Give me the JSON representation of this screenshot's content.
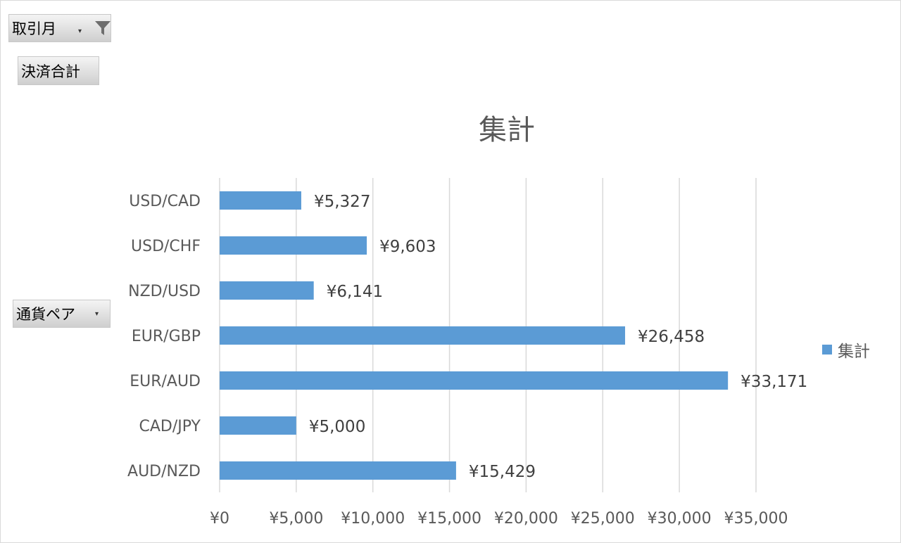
{
  "filters": {
    "month_label": "取引月",
    "settlement_label": "決済合計",
    "pair_label": "通貨ペア"
  },
  "chart_data": {
    "type": "bar",
    "orientation": "horizontal",
    "title": "集計",
    "categories": [
      "USD/CAD",
      "USD/CHF",
      "NZD/USD",
      "EUR/GBP",
      "EUR/AUD",
      "CAD/JPY",
      "AUD/NZD"
    ],
    "series": [
      {
        "name": "集計",
        "values": [
          5327,
          9603,
          6141,
          26458,
          33171,
          5000,
          15429
        ],
        "data_labels": [
          "¥5,327",
          "¥9,603",
          "¥6,141",
          "¥26,458",
          "¥33,171",
          "¥5,000",
          "¥15,429"
        ]
      }
    ],
    "xlim": [
      0,
      35000
    ],
    "xticks": [
      "¥0",
      "¥5,000",
      "¥10,000",
      "¥15,000",
      "¥20,000",
      "¥25,000",
      "¥30,000",
      "¥35,000"
    ],
    "grid": true,
    "legend": "right",
    "colors": {
      "bar": "#5b9bd5",
      "grid": "#d9d9d9",
      "text": "#595959"
    }
  }
}
